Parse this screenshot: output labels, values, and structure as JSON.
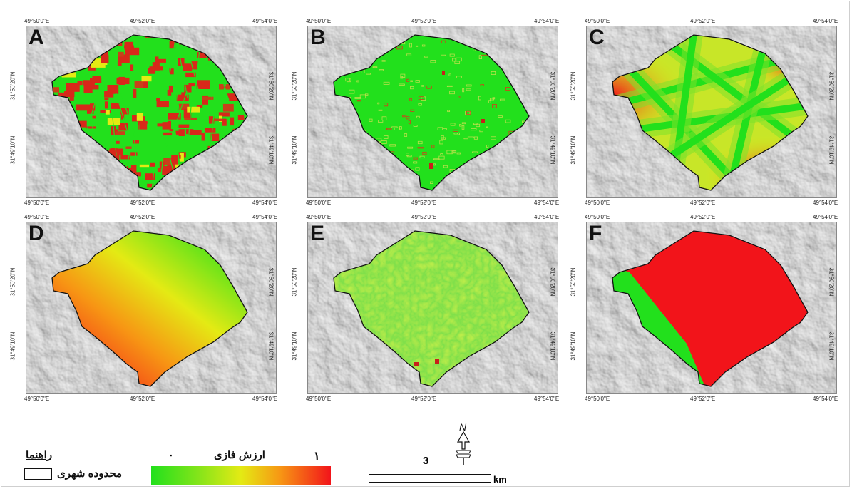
{
  "panels": [
    {
      "label": "A",
      "kind": "parcels"
    },
    {
      "label": "B",
      "kind": "green_speckle"
    },
    {
      "label": "C",
      "kind": "roads"
    },
    {
      "label": "D",
      "kind": "gradient"
    },
    {
      "label": "E",
      "kind": "noise"
    },
    {
      "label": "F",
      "kind": "split"
    }
  ],
  "coords": {
    "lon_left": "49°50'0\"E",
    "lon_mid": "49°52'0\"E",
    "lon_right": "49°54'0\"E",
    "lat_top": "31°50'20\"N",
    "lat_bottom": "31°49'10\"N"
  },
  "legend": {
    "title": "راهنما",
    "boundary_label": "محدوده شهری",
    "gradient_label": "ارزش فازی",
    "gradient_min": "۰",
    "gradient_max": "۱"
  },
  "scale": {
    "value": "3",
    "unit": "km"
  },
  "north": {
    "label": "N"
  },
  "colors": {
    "green": "#22e01c",
    "yellow": "#e4ea14",
    "orange": "#f79614",
    "red": "#f2141a",
    "hillshade": "#d9d9d9"
  }
}
